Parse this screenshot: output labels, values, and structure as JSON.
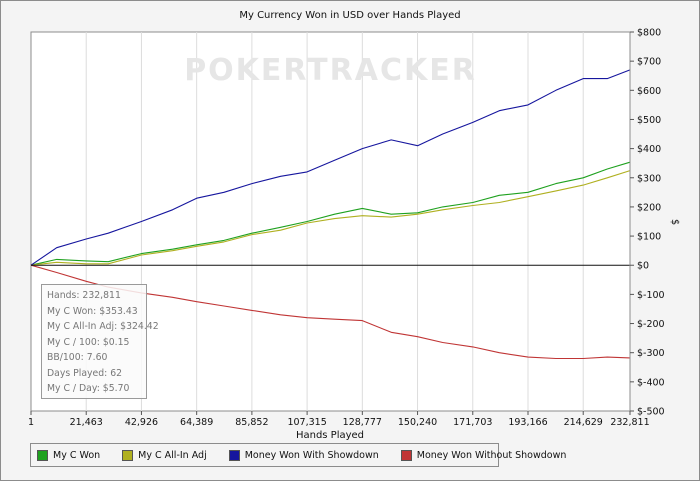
{
  "chart_data": {
    "type": "line",
    "title": "My Currency Won in USD over Hands Played",
    "xlabel": "Hands Played",
    "ylabel": "$",
    "xlim": [
      1,
      232811
    ],
    "ylim": [
      -500,
      800
    ],
    "x_ticks": [
      "1",
      "21,463",
      "42,926",
      "64,389",
      "85,852",
      "107,315",
      "128,777",
      "150,240",
      "171,703",
      "193,166",
      "214,629",
      "232,811"
    ],
    "y_ticks": [
      "$800",
      "$700",
      "$600",
      "$500",
      "$400",
      "$300",
      "$200",
      "$100",
      "$0",
      "$-100",
      "$-200",
      "$-300",
      "$-400",
      "$-500"
    ],
    "grid": "vertical",
    "legend_position": "bottom",
    "watermark": "POKERTRACKER",
    "x": [
      1,
      10000,
      21463,
      30000,
      42926,
      55000,
      64389,
      75000,
      85852,
      97000,
      107315,
      118000,
      128777,
      140000,
      150240,
      160000,
      171703,
      182000,
      193166,
      204000,
      214629,
      224000,
      232811
    ],
    "series": [
      {
        "name": "My C Won",
        "color": "#1fa11f",
        "values": [
          0,
          20,
          15,
          12,
          40,
          55,
          70,
          85,
          110,
          130,
          150,
          175,
          195,
          175,
          180,
          200,
          215,
          240,
          250,
          280,
          300,
          330,
          353.43
        ]
      },
      {
        "name": "My C All-In Adj",
        "color": "#b0b020",
        "values": [
          0,
          10,
          5,
          5,
          35,
          50,
          65,
          80,
          105,
          120,
          145,
          160,
          170,
          165,
          175,
          190,
          205,
          215,
          235,
          255,
          275,
          300,
          324.42
        ]
      },
      {
        "name": "Money Won With Showdown",
        "color": "#16169e",
        "values": [
          0,
          60,
          90,
          110,
          150,
          190,
          230,
          250,
          280,
          305,
          320,
          360,
          400,
          430,
          410,
          450,
          490,
          530,
          550,
          600,
          640,
          640,
          670
        ]
      },
      {
        "name": "Money Won Without Showdown",
        "color": "#c03535",
        "values": [
          0,
          -25,
          -55,
          -75,
          -95,
          -110,
          -125,
          -140,
          -155,
          -170,
          -180,
          -185,
          -190,
          -230,
          -245,
          -265,
          -280,
          -300,
          -315,
          -320,
          -320,
          -315,
          -318
        ]
      }
    ],
    "stats": [
      "Hands: 232,811",
      "My C Won: $353.43",
      "My C All-In Adj: $324.42",
      "My C / 100: $0.15",
      "BB/100: 7.60",
      "Days Played: 62",
      "My C / Day: $5.70"
    ]
  }
}
